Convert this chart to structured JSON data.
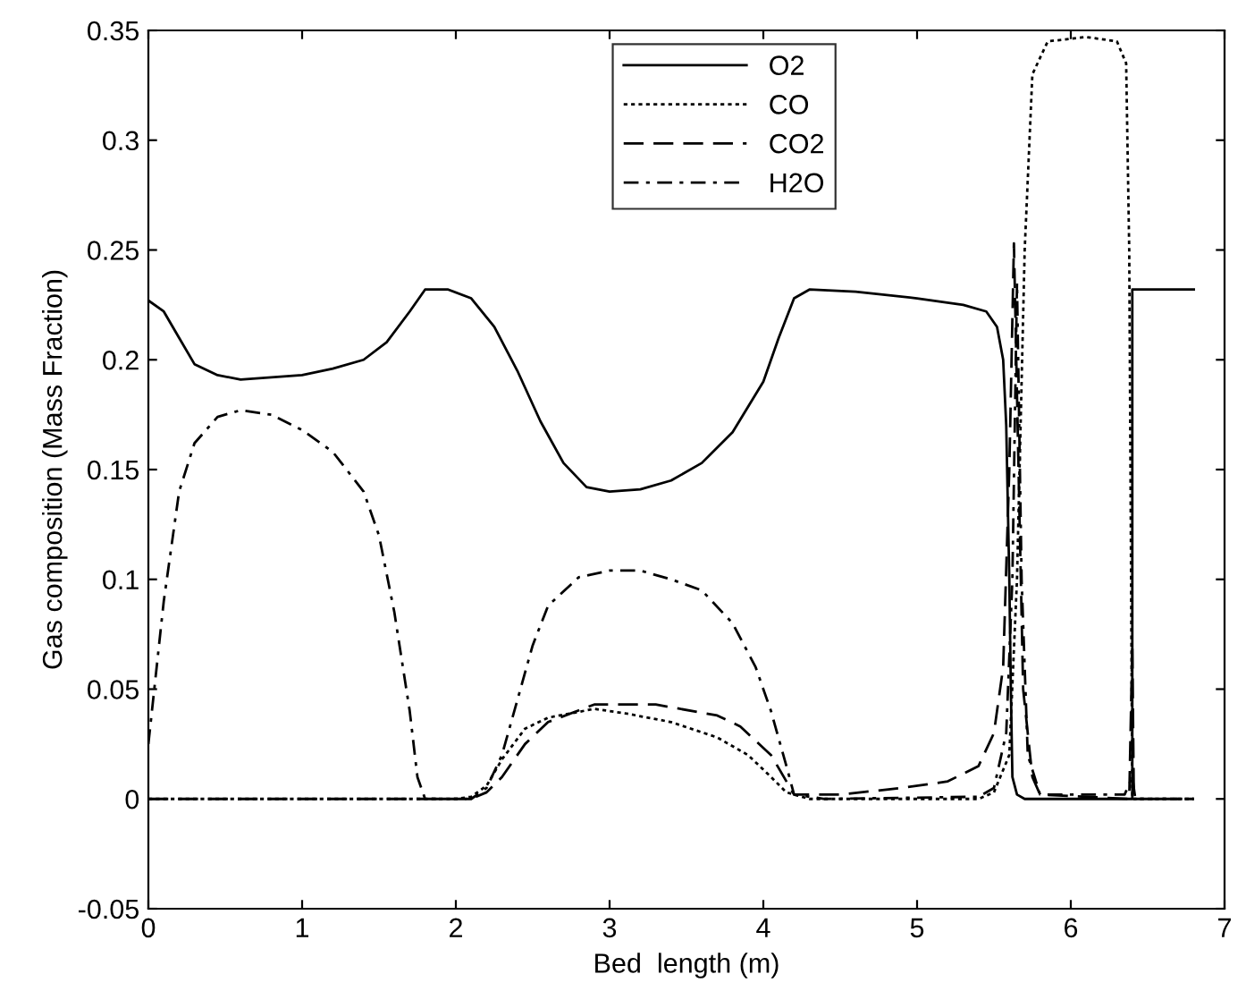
{
  "chart_data": {
    "type": "line",
    "xlabel": "Bed  length (m)",
    "ylabel": "Gas composition (Mass Fraction)",
    "xlim": [
      0,
      7
    ],
    "ylim": [
      -0.05,
      0.35
    ],
    "xticks": [
      0,
      1,
      2,
      3,
      4,
      5,
      6,
      7
    ],
    "yticks": [
      -0.05,
      0,
      0.05,
      0.1,
      0.15,
      0.2,
      0.25,
      0.3,
      0.35
    ],
    "grid": false,
    "legend": "top",
    "series": [
      {
        "name": "O2",
        "color": "#000000",
        "line_style": "solid",
        "x": [
          0,
          0.1,
          0.2,
          0.3,
          0.45,
          0.6,
          0.8,
          1.0,
          1.2,
          1.4,
          1.55,
          1.7,
          1.8,
          1.95,
          2.1,
          2.25,
          2.4,
          2.55,
          2.7,
          2.85,
          3.0,
          3.2,
          3.4,
          3.6,
          3.8,
          4.0,
          4.1,
          4.2,
          4.3,
          4.6,
          5.0,
          5.3,
          5.45,
          5.52,
          5.56,
          5.58,
          5.6,
          5.61,
          5.62,
          5.65,
          5.7,
          6.0,
          6.4,
          6.4,
          6.8
        ],
        "values": [
          0.227,
          0.222,
          0.21,
          0.198,
          0.193,
          0.191,
          0.192,
          0.193,
          0.196,
          0.2,
          0.208,
          0.222,
          0.232,
          0.232,
          0.228,
          0.215,
          0.195,
          0.172,
          0.153,
          0.142,
          0.14,
          0.141,
          0.145,
          0.153,
          0.167,
          0.19,
          0.21,
          0.228,
          0.232,
          0.231,
          0.228,
          0.225,
          0.222,
          0.215,
          0.2,
          0.17,
          0.1,
          0.05,
          0.01,
          0.002,
          0,
          0,
          0,
          0.232,
          0.232
        ]
      },
      {
        "name": "CO",
        "color": "#000000",
        "line_style": "dotted",
        "x": [
          0,
          2.0,
          2.1,
          2.2,
          2.3,
          2.45,
          2.6,
          2.9,
          3.1,
          3.4,
          3.7,
          3.9,
          4.05,
          4.15,
          4.3,
          5.4,
          5.5,
          5.6,
          5.65,
          5.7,
          5.75,
          5.85,
          6.1,
          6.3,
          6.36,
          6.38,
          6.4,
          6.8
        ],
        "values": [
          0,
          0,
          0.001,
          0.006,
          0.018,
          0.032,
          0.037,
          0.041,
          0.039,
          0.035,
          0.028,
          0.02,
          0.01,
          0.003,
          0,
          0,
          0.003,
          0.02,
          0.1,
          0.25,
          0.33,
          0.345,
          0.347,
          0.345,
          0.335,
          0.25,
          0,
          0
        ]
      },
      {
        "name": "CO2",
        "color": "#000000",
        "line_style": "dashed",
        "x": [
          0,
          2.1,
          2.2,
          2.3,
          2.45,
          2.6,
          2.9,
          3.3,
          3.7,
          3.85,
          4.05,
          4.2,
          4.5,
          4.9,
          5.2,
          5.4,
          5.5,
          5.56,
          5.6,
          5.63,
          5.66,
          5.69,
          5.75,
          5.8,
          6.38,
          6.4,
          6.41,
          6.8
        ],
        "values": [
          0,
          0,
          0.003,
          0.01,
          0.025,
          0.035,
          0.043,
          0.043,
          0.038,
          0.033,
          0.02,
          0.002,
          0.002,
          0.005,
          0.008,
          0.015,
          0.03,
          0.06,
          0.15,
          0.253,
          0.15,
          0.05,
          0.01,
          0.002,
          0,
          0.07,
          0,
          0
        ]
      },
      {
        "name": "H2O",
        "color": "#000000",
        "line_style": "dashdot",
        "x": [
          0,
          0.1,
          0.2,
          0.3,
          0.45,
          0.6,
          0.8,
          1.0,
          1.2,
          1.4,
          1.5,
          1.6,
          1.7,
          1.75,
          1.8,
          2.1,
          2.2,
          2.3,
          2.4,
          2.5,
          2.6,
          2.8,
          3.0,
          3.2,
          3.4,
          3.6,
          3.8,
          3.95,
          4.05,
          4.15,
          4.2,
          4.4,
          5.4,
          5.5,
          5.58,
          5.62,
          5.65,
          5.68,
          5.72,
          5.8,
          6.35,
          6.4,
          6.42,
          6.8
        ],
        "values": [
          0.025,
          0.09,
          0.14,
          0.162,
          0.174,
          0.177,
          0.175,
          0.168,
          0.158,
          0.14,
          0.12,
          0.085,
          0.04,
          0.01,
          0,
          0,
          0.005,
          0.02,
          0.045,
          0.07,
          0.088,
          0.101,
          0.104,
          0.104,
          0.1,
          0.095,
          0.08,
          0.06,
          0.04,
          0.015,
          0.002,
          0,
          0.001,
          0.005,
          0.03,
          0.1,
          0.235,
          0.1,
          0.02,
          0.002,
          0.002,
          0.01,
          0,
          0
        ]
      }
    ]
  }
}
